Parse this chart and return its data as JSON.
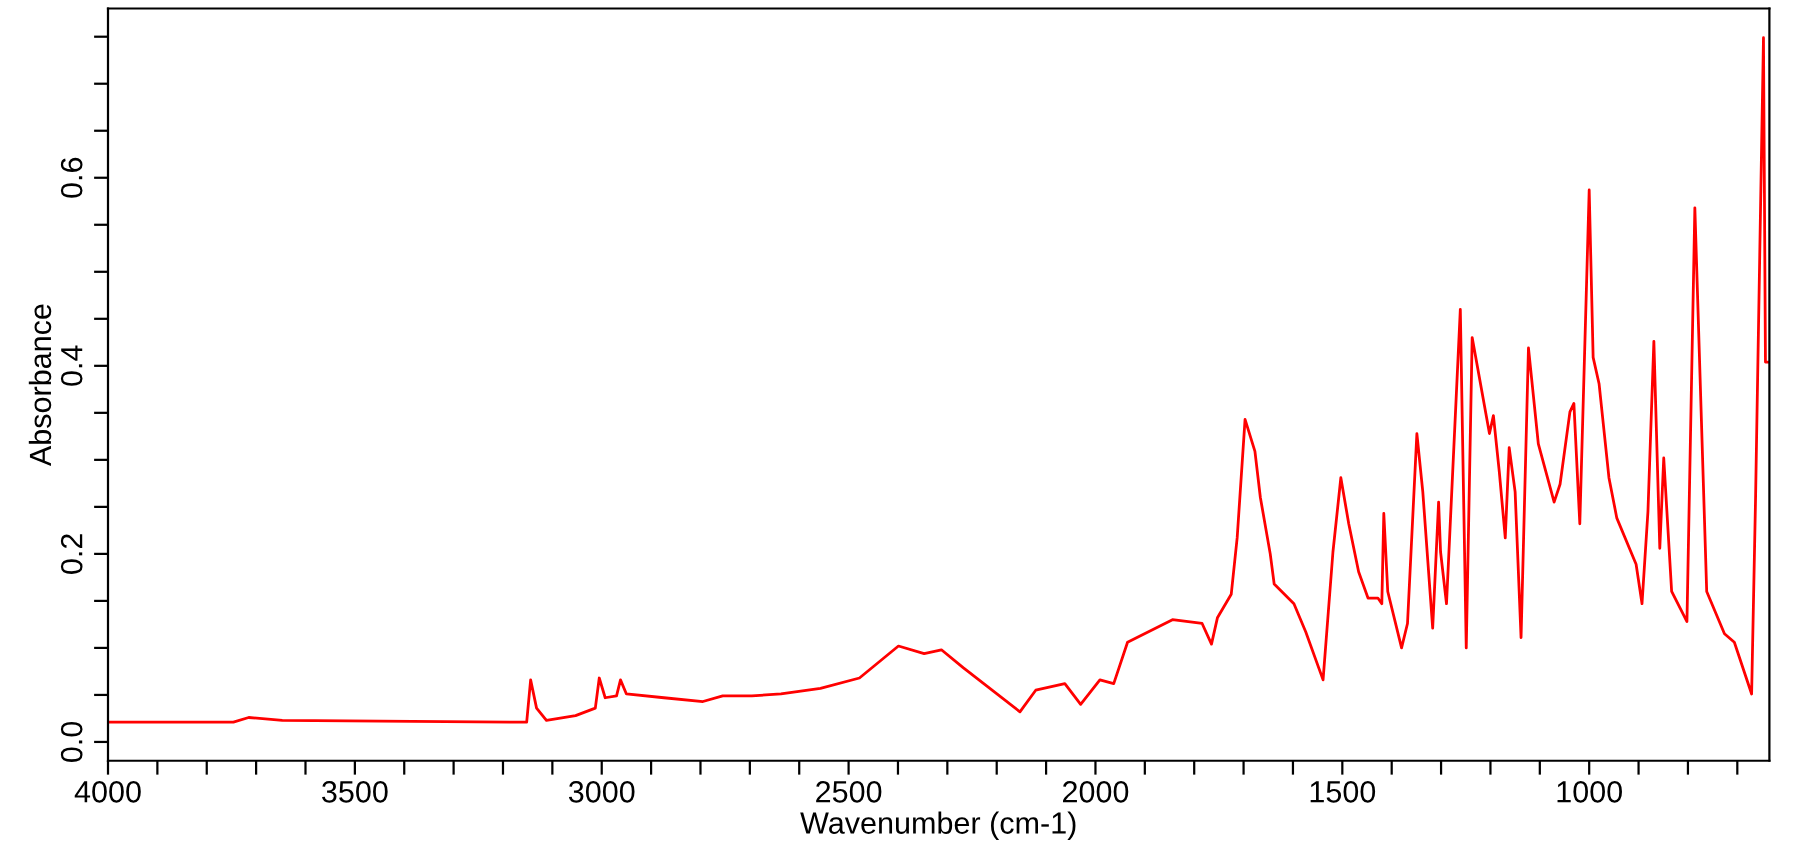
{
  "chart_data": {
    "type": "line",
    "xlabel": "Wavenumber (cm-1)",
    "ylabel": "Absorbance",
    "xlim": [
      4000,
      635
    ],
    "ylim": [
      -0.02,
      0.78
    ],
    "xticks": [
      4000,
      {
        "value": 3900,
        "label": null
      },
      {
        "value": 3800,
        "label": null
      },
      {
        "value": 3700,
        "label": null
      },
      {
        "value": 3600,
        "label": null
      },
      3500,
      {
        "value": 3400,
        "label": null
      },
      {
        "value": 3300,
        "label": null
      },
      {
        "value": 3200,
        "label": null
      },
      {
        "value": 3100,
        "label": null
      },
      3000,
      {
        "value": 2900,
        "label": null
      },
      {
        "value": 2800,
        "label": null
      },
      {
        "value": 2700,
        "label": null
      },
      {
        "value": 2600,
        "label": null
      },
      2500,
      {
        "value": 2400,
        "label": null
      },
      {
        "value": 2300,
        "label": null
      },
      {
        "value": 2200,
        "label": null
      },
      {
        "value": 2100,
        "label": null
      },
      2000,
      {
        "value": 1900,
        "label": null
      },
      {
        "value": 1800,
        "label": null
      },
      {
        "value": 1700,
        "label": null
      },
      {
        "value": 1600,
        "label": null
      },
      1500,
      {
        "value": 1400,
        "label": null
      },
      {
        "value": 1300,
        "label": null
      },
      {
        "value": 1200,
        "label": null
      },
      {
        "value": 1100,
        "label": null
      },
      1000,
      {
        "value": 900,
        "label": null
      },
      {
        "value": 800,
        "label": null
      },
      {
        "value": 700,
        "label": null
      }
    ],
    "yticks": [
      {
        "value": 0.0,
        "label": "0.0"
      },
      {
        "value": 0.05,
        "label": null
      },
      {
        "value": 0.1,
        "label": null
      },
      {
        "value": 0.15,
        "label": null
      },
      {
        "value": 0.2,
        "label": "0.2"
      },
      {
        "value": 0.25,
        "label": null
      },
      {
        "value": 0.3,
        "label": null
      },
      {
        "value": 0.35,
        "label": null
      },
      {
        "value": 0.4,
        "label": "0.4"
      },
      {
        "value": 0.45,
        "label": null
      },
      {
        "value": 0.5,
        "label": null
      },
      {
        "value": 0.55,
        "label": null
      },
      {
        "value": 0.6,
        "label": "0.6"
      },
      {
        "value": 0.65,
        "label": null
      },
      {
        "value": 0.7,
        "label": null
      },
      {
        "value": 0.75,
        "label": null
      }
    ],
    "series": [
      {
        "color": "#ff0000",
        "x": [
          4000,
          3746,
          3715,
          3647,
          3152,
          3144,
          3132,
          3112,
          3053,
          3013,
          3005,
          2993,
          2970,
          2962,
          2950,
          2874,
          2795,
          2755,
          2696,
          2637,
          2557,
          2478,
          2399,
          2347,
          2312,
          2268,
          2153,
          2121,
          2062,
          2030,
          1991,
          1963,
          1935,
          1844,
          1784,
          1765,
          1753,
          1725,
          1713,
          1697,
          1677,
          1666,
          1646,
          1638,
          1598,
          1574,
          1539,
          1519,
          1503,
          1487,
          1467,
          1448,
          1428,
          1420,
          1416,
          1408,
          1380,
          1368,
          1349,
          1337,
          1317,
          1305,
          1301,
          1289,
          1261,
          1249,
          1237,
          1202,
          1194,
          1182,
          1170,
          1162,
          1150,
          1138,
          1123,
          1103,
          1071,
          1059,
          1039,
          1031,
          1019,
          1000,
          992,
          980,
          960,
          944,
          905,
          893,
          881,
          869,
          857,
          849,
          833,
          802,
          786,
          762,
          726,
          706,
          671,
          663,
          647,
          643,
          635
        ],
        "values": [
          0.021,
          0.021,
          0.026,
          0.023,
          0.021,
          0.066,
          0.036,
          0.023,
          0.028,
          0.036,
          0.068,
          0.047,
          0.049,
          0.066,
          0.051,
          0.047,
          0.043,
          0.049,
          0.049,
          0.051,
          0.057,
          0.068,
          0.102,
          0.094,
          0.098,
          0.079,
          0.032,
          0.055,
          0.062,
          0.04,
          0.066,
          0.062,
          0.106,
          0.13,
          0.126,
          0.104,
          0.132,
          0.157,
          0.217,
          0.343,
          0.309,
          0.26,
          0.2,
          0.168,
          0.147,
          0.117,
          0.066,
          0.202,
          0.281,
          0.232,
          0.181,
          0.153,
          0.153,
          0.147,
          0.243,
          0.16,
          0.1,
          0.126,
          0.328,
          0.266,
          0.121,
          0.255,
          0.202,
          0.147,
          0.46,
          0.1,
          0.43,
          0.328,
          0.347,
          0.287,
          0.217,
          0.313,
          0.266,
          0.111,
          0.419,
          0.317,
          0.255,
          0.274,
          0.351,
          0.36,
          0.232,
          0.587,
          0.409,
          0.381,
          0.281,
          0.238,
          0.189,
          0.147,
          0.245,
          0.426,
          0.206,
          0.302,
          0.16,
          0.128,
          0.568,
          0.16,
          0.115,
          0.106,
          0.051,
          0.26,
          0.749,
          0.404,
          0.404
        ]
      }
    ],
    "grid": false,
    "marker": "none",
    "line_style": "solid"
  }
}
